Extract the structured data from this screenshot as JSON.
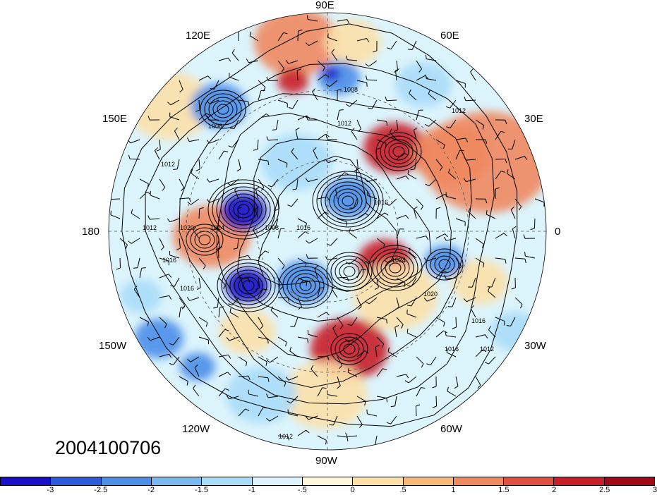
{
  "timestamp": "2004100706",
  "projection": "north-polar-stereographic",
  "longitude_labels": [
    {
      "text": "90E"
    },
    {
      "text": "60E"
    },
    {
      "text": "120E"
    },
    {
      "text": "30E"
    },
    {
      "text": "150E"
    },
    {
      "text": "180"
    },
    {
      "text": "0"
    },
    {
      "text": "150W"
    },
    {
      "text": "30W"
    },
    {
      "text": "120W"
    },
    {
      "text": "60W"
    },
    {
      "text": "90W"
    }
  ],
  "contour_labels": [
    "1008",
    "1008",
    "1012",
    "1012",
    "1012",
    "1016",
    "1016",
    "1016",
    "1016",
    "1012",
    "1012",
    "1020",
    "1024",
    "1024",
    "1020",
    "1008",
    "1016",
    "1016",
    "1012"
  ],
  "colorbar": {
    "colors": [
      "#1a0fc8",
      "#2a5ad8",
      "#4a8ee8",
      "#7ab8f0",
      "#a8dcf8",
      "#dcf4fc",
      "#fff8dc",
      "#fce0a8",
      "#f8b878",
      "#f08860",
      "#e05040",
      "#c81e28",
      "#a00a18"
    ],
    "ticks": [
      "-3",
      "-2.5",
      "-2",
      "-1.5",
      "-1",
      "-.5",
      "0",
      ".5",
      "1",
      "1.5",
      "2",
      "2.5",
      "3"
    ]
  },
  "anomaly_colors": {
    "strong_neg": "#1a10c8",
    "neg": "#4a8ee8",
    "weak_neg": "#a8dcf8",
    "weak_pos": "#fce0a8",
    "pos": "#f08860",
    "strong_pos": "#c81e28"
  }
}
